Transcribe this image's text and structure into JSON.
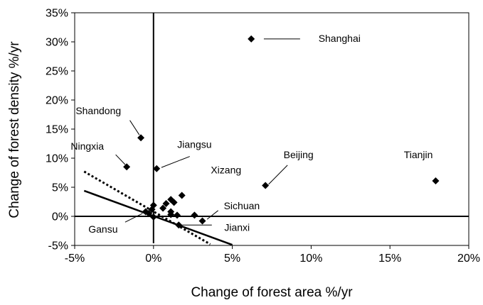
{
  "chart_data": {
    "type": "scatter",
    "title": "",
    "xlabel": "Change of forest area %/yr",
    "ylabel": "Change of forest density  %/yr",
    "xlim": [
      -5,
      20
    ],
    "ylim": [
      -5,
      35
    ],
    "x_ticks": [
      -5,
      0,
      5,
      10,
      15,
      20
    ],
    "y_ticks": [
      -5,
      0,
      5,
      10,
      15,
      20,
      25,
      30,
      35
    ],
    "x_tick_labels": [
      "-5%",
      "0%",
      "5%",
      "10%",
      "15%",
      "20%"
    ],
    "y_tick_labels": [
      "-5%",
      "0%",
      "5%",
      "10%",
      "15%",
      "20%",
      "25%",
      "30%",
      "35%"
    ],
    "grid": false,
    "legend": "none",
    "marker": "diamond",
    "marker_color": "#000000",
    "points": [
      {
        "x": 6.2,
        "y": 30.5
      },
      {
        "x": 17.9,
        "y": 6.1
      },
      {
        "x": 7.1,
        "y": 5.3
      },
      {
        "x": -0.8,
        "y": 13.5
      },
      {
        "x": -1.7,
        "y": 8.5
      },
      {
        "x": 0.2,
        "y": 8.2
      },
      {
        "x": 3.1,
        "y": -0.8
      },
      {
        "x": 1.6,
        "y": -1.5
      },
      {
        "x": -0.5,
        "y": 0.8
      },
      {
        "x": -0.3,
        "y": 0.5
      },
      {
        "x": -0.1,
        "y": 1.2
      },
      {
        "x": 0.0,
        "y": 1.9
      },
      {
        "x": 0.0,
        "y": -0.1
      },
      {
        "x": 0.6,
        "y": 1.4
      },
      {
        "x": 0.8,
        "y": 2.2
      },
      {
        "x": 1.1,
        "y": 2.9
      },
      {
        "x": 1.3,
        "y": 2.4
      },
      {
        "x": 1.8,
        "y": 3.6
      },
      {
        "x": 1.5,
        "y": 0.2
      },
      {
        "x": 1.1,
        "y": 0.3
      },
      {
        "x": 1.1,
        "y": 0.8
      },
      {
        "x": 2.6,
        "y": 0.2
      }
    ],
    "annotations": [
      {
        "text": "Shanghai",
        "label_x": 11.8,
        "label_y": 30.6,
        "anchor": "middle",
        "line": [
          [
            7.0,
            30.5
          ],
          [
            9.3,
            30.5
          ]
        ]
      },
      {
        "text": "Tianjin",
        "label_x": 16.8,
        "label_y": 10.6,
        "anchor": "middle"
      },
      {
        "text": "Beijing",
        "label_x": 9.2,
        "label_y": 10.6,
        "anchor": "middle",
        "line": [
          [
            7.3,
            5.5
          ],
          [
            8.5,
            8.8
          ]
        ]
      },
      {
        "text": "Xizang",
        "label_x": 4.6,
        "label_y": 8.0,
        "anchor": "middle"
      },
      {
        "text": "Jiangsu",
        "label_x": 2.6,
        "label_y": 12.4,
        "anchor": "middle",
        "line": [
          [
            0.5,
            8.4
          ],
          [
            2.3,
            10.3
          ]
        ]
      },
      {
        "text": "Shandong",
        "label_x": -3.5,
        "label_y": 18.2,
        "anchor": "middle",
        "line": [
          [
            -1.5,
            16.5
          ],
          [
            -0.9,
            14.0
          ]
        ]
      },
      {
        "text": "Ningxia",
        "label_x": -4.2,
        "label_y": 12.1,
        "anchor": "middle",
        "line": [
          [
            -2.4,
            10.6
          ],
          [
            -1.8,
            8.9
          ]
        ]
      },
      {
        "text": "Sichuan",
        "label_x": 5.6,
        "label_y": 1.8,
        "anchor": "middle",
        "line": [
          [
            3.4,
            -0.5
          ],
          [
            4.1,
            1.0
          ]
        ]
      },
      {
        "text": "Jianxi",
        "label_x": 5.3,
        "label_y": -1.9,
        "anchor": "middle",
        "line": [
          [
            1.8,
            -1.5
          ],
          [
            3.7,
            -1.5
          ]
        ]
      },
      {
        "text": "Gansu",
        "label_x": -3.2,
        "label_y": -2.2,
        "anchor": "middle",
        "line": [
          [
            -1.8,
            -1.0
          ],
          [
            -0.7,
            0.5
          ]
        ]
      }
    ],
    "reference_lines": [
      {
        "style": "solid",
        "width": 2.5,
        "from": [
          -4.4,
          4.4
        ],
        "to": [
          5.0,
          -4.9
        ]
      },
      {
        "style": "dotted",
        "width": 3,
        "from": [
          -4.4,
          7.7
        ],
        "to": [
          3.6,
          -4.8
        ]
      }
    ]
  }
}
